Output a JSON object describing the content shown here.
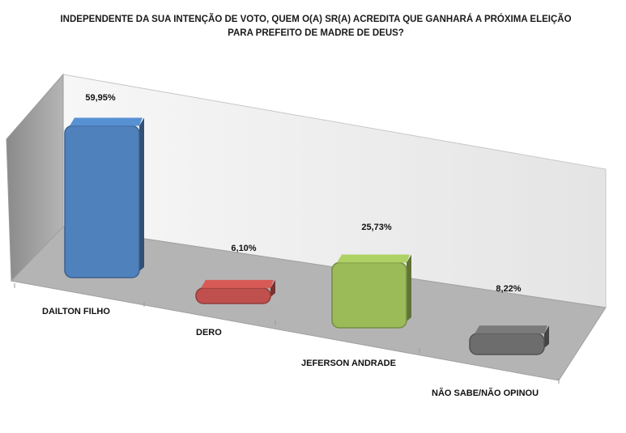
{
  "chart_data": {
    "type": "bar",
    "title": "INDEPENDENTE DA SUA INTENÇÃO DE VOTO, QUEM O(A) SR(A) ACREDITA QUE GANHARÁ A PRÓXIMA ELEIÇÃO PARA PREFEITO DE MADRE DE DEUS?",
    "categories": [
      "DAILTON FILHO",
      "DERO",
      "JEFERSON ANDRADE",
      "NÃO SABE/NÃO OPINOU"
    ],
    "values": [
      59.95,
      6.1,
      25.73,
      8.22
    ],
    "value_labels": [
      "59,95%",
      "6,10%",
      "25,73%",
      "8,22%"
    ],
    "colors": [
      "#4f81bd",
      "#c0504d",
      "#9bbb59",
      "#6d6d6d"
    ],
    "style": "3d-perspective-columns",
    "grid": false,
    "legend": "none"
  }
}
